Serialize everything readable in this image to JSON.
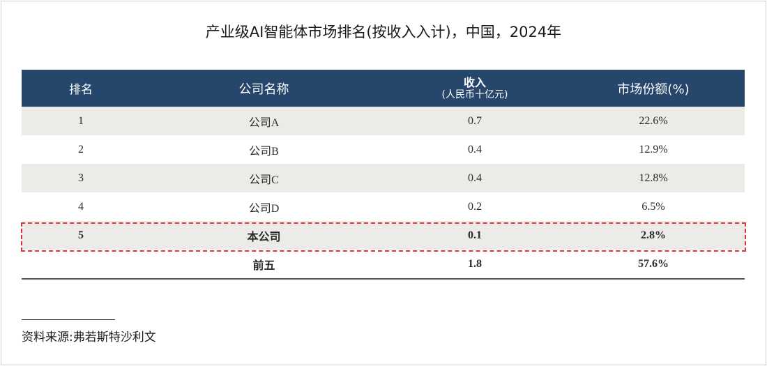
{
  "title": "产业级AI智能体市场排名(按收入入计)，中国，2024年",
  "table": {
    "headers": {
      "rank": "排名",
      "company": "公司名称",
      "revenue_line1": "收入",
      "revenue_line2": "(人民币十亿元)",
      "share": "市场份额(%)"
    },
    "rows": [
      {
        "rank": "1",
        "company": "公司A",
        "revenue": "0.7",
        "share": "22.6%"
      },
      {
        "rank": "2",
        "company": "公司B",
        "revenue": "0.4",
        "share": "12.9%"
      },
      {
        "rank": "3",
        "company": "公司C",
        "revenue": "0.4",
        "share": "12.8%"
      },
      {
        "rank": "4",
        "company": "公司D",
        "revenue": "0.2",
        "share": "6.5%"
      },
      {
        "rank": "5",
        "company": "本公司",
        "revenue": "0.1",
        "share": "2.8%"
      }
    ],
    "total": {
      "label": "前五",
      "revenue": "1.8",
      "share": "57.6%"
    }
  },
  "source": "资料来源:弗若斯特沙利文",
  "colors": {
    "header_bg": "#26466b",
    "row_shade": "#ecebe8",
    "highlight_border": "#d9363e"
  }
}
